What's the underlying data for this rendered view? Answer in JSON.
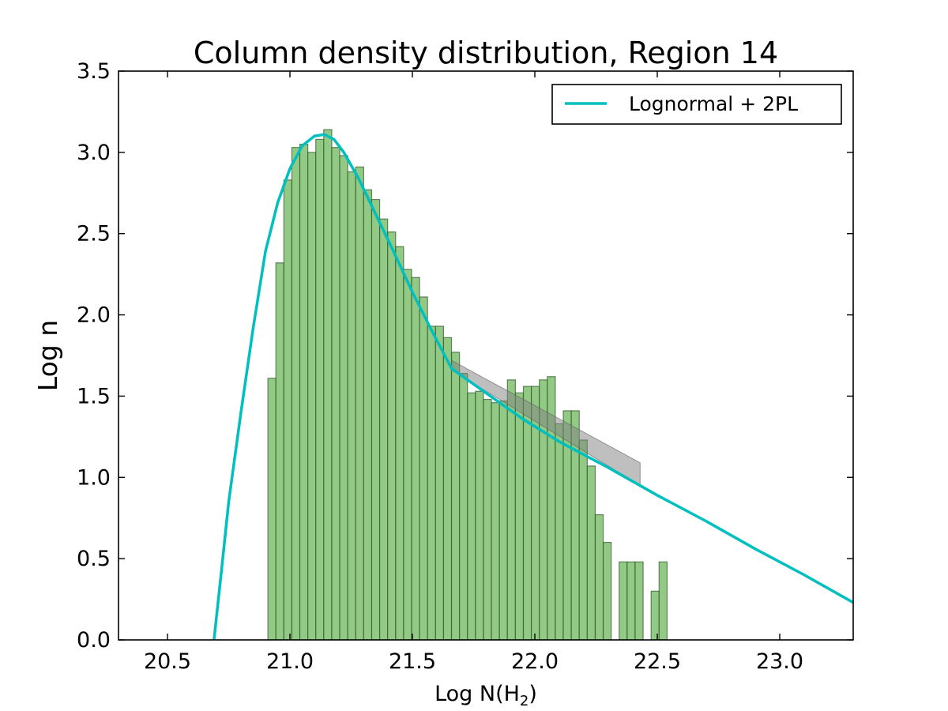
{
  "chart_data": {
    "type": "bar",
    "title": "Column density distribution, Region 14",
    "xlabel": {
      "main": "Log N(H",
      "subscript": "2",
      "close": ")"
    },
    "ylabel": "Log n",
    "xlim": [
      20.3,
      23.3
    ],
    "ylim": [
      0.0,
      3.5
    ],
    "x_ticks": [
      "20.5",
      "21.0",
      "21.5",
      "22.0",
      "22.5",
      "23.0"
    ],
    "x_tick_values": [
      20.5,
      21.0,
      21.5,
      22.0,
      22.5,
      23.0
    ],
    "y_ticks": [
      "0.0",
      "0.5",
      "1.0",
      "1.5",
      "2.0",
      "2.5",
      "3.0",
      "3.5"
    ],
    "y_tick_values": [
      0.0,
      0.5,
      1.0,
      1.5,
      2.0,
      2.5,
      3.0,
      3.5
    ],
    "histogram": {
      "bin_start": 20.91,
      "bin_width": 0.0326,
      "values": [
        1.61,
        2.32,
        2.83,
        3.03,
        3.05,
        3.0,
        3.08,
        3.14,
        3.03,
        2.98,
        2.88,
        2.91,
        2.77,
        2.71,
        2.59,
        2.51,
        2.42,
        2.28,
        2.23,
        2.11,
        1.93,
        1.93,
        1.86,
        1.77,
        1.64,
        1.52,
        1.53,
        1.48,
        1.46,
        1.47,
        1.6,
        1.52,
        1.56,
        1.56,
        1.6,
        1.62,
        1.33,
        1.41,
        1.41,
        1.23,
        1.07,
        0.77,
        0.6,
        0,
        0.48,
        0.48,
        0.48,
        0,
        0.3,
        0.48
      ],
      "fill_color": "#7fbf6f",
      "edge_color": "#2f5a2a"
    },
    "series": [
      {
        "name": "Lognormal + 2PL",
        "color": "#00bfbf",
        "x": [
          20.69,
          20.72,
          20.75,
          20.8,
          20.85,
          20.9,
          20.95,
          21.0,
          21.05,
          21.1,
          21.14,
          21.18,
          21.22,
          21.28,
          21.35,
          21.42,
          21.5,
          21.58,
          21.66,
          21.8,
          21.95,
          22.1,
          22.3,
          22.5,
          22.7,
          22.9,
          23.1,
          23.3
        ],
        "y": [
          0.0,
          0.42,
          0.85,
          1.4,
          1.92,
          2.39,
          2.69,
          2.9,
          3.04,
          3.1,
          3.11,
          3.08,
          3.0,
          2.84,
          2.62,
          2.4,
          2.14,
          1.9,
          1.67,
          1.52,
          1.36,
          1.22,
          1.06,
          0.89,
          0.73,
          0.56,
          0.4,
          0.23
        ]
      }
    ],
    "uncertainty_band": {
      "color": "#808080",
      "x": [
        21.66,
        22.43
      ],
      "upper": [
        1.72,
        1.09
      ],
      "lower": [
        1.66,
        0.95
      ]
    },
    "legend": {
      "position": "top-right",
      "entries": [
        "Lognormal + 2PL"
      ]
    },
    "grid": false
  }
}
